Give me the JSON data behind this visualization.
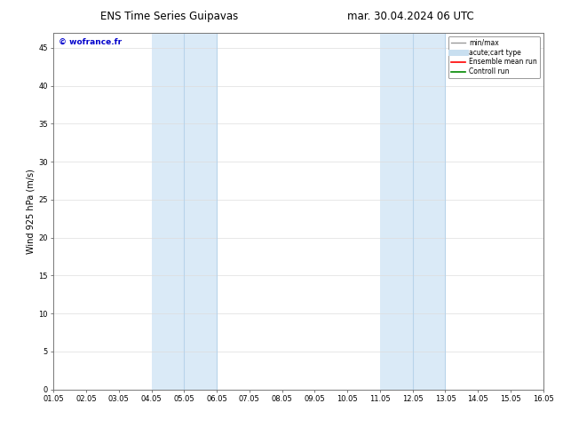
{
  "title_left": "ENS Time Series Guipavas",
  "title_right": "mar. 30.04.2024 06 UTC",
  "ylabel": "Wind 925 hPa (m/s)",
  "watermark": "© wofrance.fr",
  "watermark_color": "#0000cc",
  "xticks": [
    "01.05",
    "02.05",
    "03.05",
    "04.05",
    "05.05",
    "06.05",
    "07.05",
    "08.05",
    "09.05",
    "10.05",
    "11.05",
    "12.05",
    "13.05",
    "14.05",
    "15.05",
    "16.05"
  ],
  "xtick_positions": [
    0,
    1,
    2,
    3,
    4,
    5,
    6,
    7,
    8,
    9,
    10,
    11,
    12,
    13,
    14,
    15
  ],
  "ylim": [
    0,
    47
  ],
  "yticks": [
    0,
    5,
    10,
    15,
    20,
    25,
    30,
    35,
    40,
    45
  ],
  "shaded_regions": [
    {
      "xstart": 3.0,
      "xend": 5.0,
      "color": "#daeaf7"
    },
    {
      "xstart": 10.0,
      "xend": 12.0,
      "color": "#daeaf7"
    }
  ],
  "shaded_lines": [
    {
      "x": 4.0,
      "color": "#b8d4ea"
    },
    {
      "x": 5.0,
      "color": "#b8d4ea"
    },
    {
      "x": 11.0,
      "color": "#b8d4ea"
    },
    {
      "x": 12.0,
      "color": "#b8d4ea"
    }
  ],
  "legend_entries": [
    {
      "label": "min/max",
      "color": "#999999",
      "lw": 1.0,
      "linestyle": "-"
    },
    {
      "label": "acute;cart type",
      "color": "#c8dff0",
      "lw": 5,
      "linestyle": "-"
    },
    {
      "label": "Ensemble mean run",
      "color": "#ff0000",
      "lw": 1.2,
      "linestyle": "-"
    },
    {
      "label": "Controll run",
      "color": "#008800",
      "lw": 1.2,
      "linestyle": "-"
    }
  ],
  "background_color": "#ffffff",
  "plot_bg_color": "#ffffff",
  "grid_color": "#dddddd",
  "tick_fontsize": 6,
  "label_fontsize": 7,
  "title_fontsize": 8.5
}
